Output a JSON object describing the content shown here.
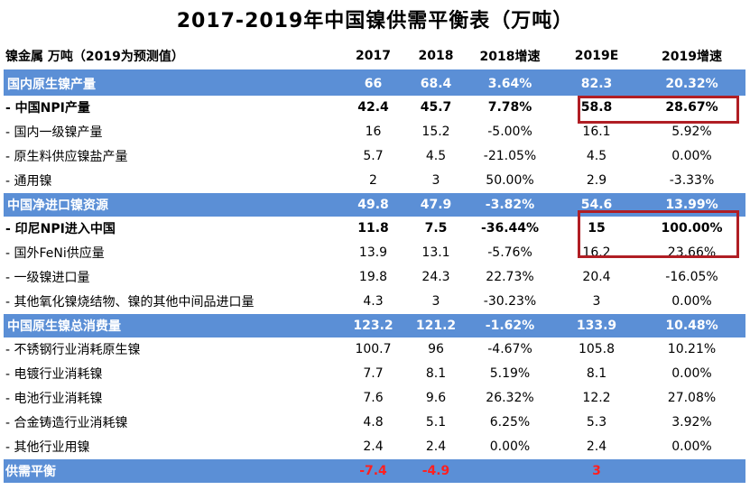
{
  "title": "2017-2019年中国镍供需平衡表（万吨）",
  "header": {
    "label": "镍金属 万吨（2019为预测值）",
    "cols": [
      "2017",
      "2018",
      "2018增速",
      "2019E",
      "2019增速"
    ]
  },
  "rows": [
    {
      "type": "section",
      "label": "国内原生镍产量",
      "v": [
        "66",
        "68.4",
        "3.64%",
        "82.3",
        "20.32%"
      ]
    },
    {
      "type": "bold",
      "label": "- 中国NPI产量",
      "v": [
        "42.4",
        "45.7",
        "7.78%",
        "58.8",
        "28.67%"
      ]
    },
    {
      "type": "normal",
      "label": "- 国内一级镍产量",
      "v": [
        "16",
        "15.2",
        "-5.00%",
        "16.1",
        "5.92%"
      ]
    },
    {
      "type": "normal",
      "label": "- 原生料供应镍盐产量",
      "v": [
        "5.7",
        "4.5",
        "-21.05%",
        "4.5",
        "0.00%"
      ]
    },
    {
      "type": "normal",
      "label": "- 通用镍",
      "v": [
        "2",
        "3",
        "50.00%",
        "2.9",
        "-3.33%"
      ]
    },
    {
      "type": "section",
      "label": "中国净进口镍资源",
      "v": [
        "49.8",
        "47.9",
        "-3.82%",
        "54.6",
        "13.99%"
      ]
    },
    {
      "type": "bold",
      "label": "- 印尼NPI进入中国",
      "v": [
        "11.8",
        "7.5",
        "-36.44%",
        "15",
        "100.00%"
      ]
    },
    {
      "type": "normal",
      "label": "- 国外FeNi供应量",
      "v": [
        "13.9",
        "13.1",
        "-5.76%",
        "16.2",
        "23.66%"
      ]
    },
    {
      "type": "normal",
      "label": "- 一级镍进口量",
      "v": [
        "19.8",
        "24.3",
        "22.73%",
        "20.4",
        "-16.05%"
      ]
    },
    {
      "type": "normal",
      "label": "- 其他氧化镍烧结物、镍的其他中间品进口量",
      "v": [
        "4.3",
        "3",
        "-30.23%",
        "3",
        "0.00%"
      ]
    },
    {
      "type": "section",
      "label": "中国原生镍总消费量",
      "v": [
        "123.2",
        "121.2",
        "-1.62%",
        "133.9",
        "10.48%"
      ]
    },
    {
      "type": "normal",
      "label": " - 不锈钢行业消耗原生镍",
      "v": [
        "100.7",
        "96",
        "-4.67%",
        "105.8",
        "10.21%"
      ]
    },
    {
      "type": "normal",
      "label": " - 电镀行业消耗镍",
      "v": [
        "7.7",
        "8.1",
        "5.19%",
        "8.1",
        "0.00%"
      ]
    },
    {
      "type": "normal",
      "label": " - 电池行业消耗镍",
      "v": [
        "7.6",
        "9.6",
        "26.32%",
        "12.2",
        "27.08%"
      ]
    },
    {
      "type": "normal",
      "label": " - 合金铸造行业消耗镍",
      "v": [
        "4.8",
        "5.1",
        "6.25%",
        "5.3",
        "3.92%"
      ]
    },
    {
      "type": "normal",
      "label": " - 其他行业用镍",
      "v": [
        "2.4",
        "2.4",
        "0.00%",
        "2.4",
        "0.00%"
      ]
    },
    {
      "type": "last",
      "label": "供需平衡",
      "v": [
        "-7.4",
        "-4.9",
        "",
        "3",
        ""
      ]
    }
  ],
  "colors": {
    "section": "#5b8fd6",
    "highlight_box": "#b01e24",
    "balance_text": "#ff2020"
  }
}
